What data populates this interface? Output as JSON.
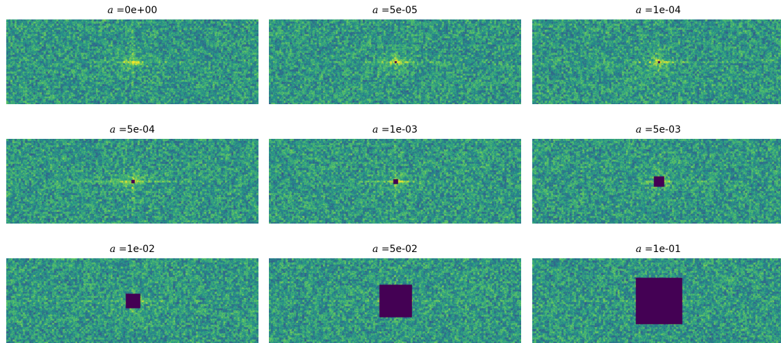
{
  "variable": "a",
  "equals": " =",
  "panels": [
    {
      "value": "0e+00",
      "a": 0
    },
    {
      "value": "5e-05",
      "a": 5e-05
    },
    {
      "value": "1e-04",
      "a": 0.0001
    },
    {
      "value": "5e-04",
      "a": 0.0005
    },
    {
      "value": "1e-03",
      "a": 0.001
    },
    {
      "value": "5e-03",
      "a": 0.005
    },
    {
      "value": "1e-02",
      "a": 0.01
    },
    {
      "value": "5e-02",
      "a": 0.05
    },
    {
      "value": "1e-01",
      "a": 0.1
    }
  ],
  "colormap": [
    "#440154",
    "#3b528b",
    "#21918c",
    "#5ec962",
    "#fde725"
  ]
}
